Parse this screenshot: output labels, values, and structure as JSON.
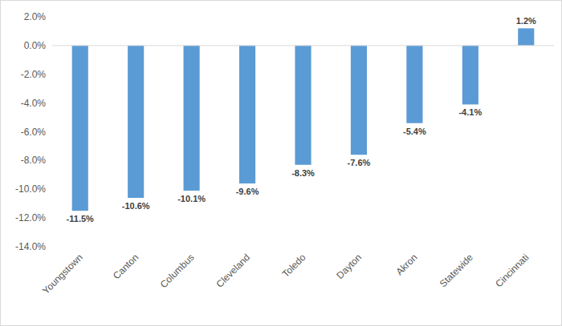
{
  "chart_data": {
    "type": "bar",
    "categories": [
      "Youngstown",
      "Canton",
      "Columbus",
      "Cleveland",
      "Toledo",
      "Dayton",
      "Akron",
      "Statewide",
      "Cincinnati"
    ],
    "values": [
      -11.5,
      -10.6,
      -10.1,
      -9.6,
      -8.3,
      -7.6,
      -5.4,
      -4.1,
      1.2
    ],
    "value_labels": [
      "-11.5%",
      "-10.6%",
      "-10.1%",
      "-9.6%",
      "-8.3%",
      "-7.6%",
      "-5.4%",
      "-4.1%",
      "1.2%"
    ],
    "color": "#5b9bd5",
    "ylim": [
      -14,
      2
    ],
    "yticks": [
      {
        "value": 2,
        "label": "2.0%"
      },
      {
        "value": 0,
        "label": "0.0%"
      },
      {
        "value": -2,
        "label": "-2.0%"
      },
      {
        "value": -4,
        "label": "-4.0%"
      },
      {
        "value": -6,
        "label": "-6.0%"
      },
      {
        "value": -8,
        "label": "-8.0%"
      },
      {
        "value": -10,
        "label": "-10.0%"
      },
      {
        "value": -12,
        "label": "-12.0%"
      },
      {
        "value": -14,
        "label": "-14.0%"
      }
    ],
    "grid": false,
    "data_labels": true
  }
}
